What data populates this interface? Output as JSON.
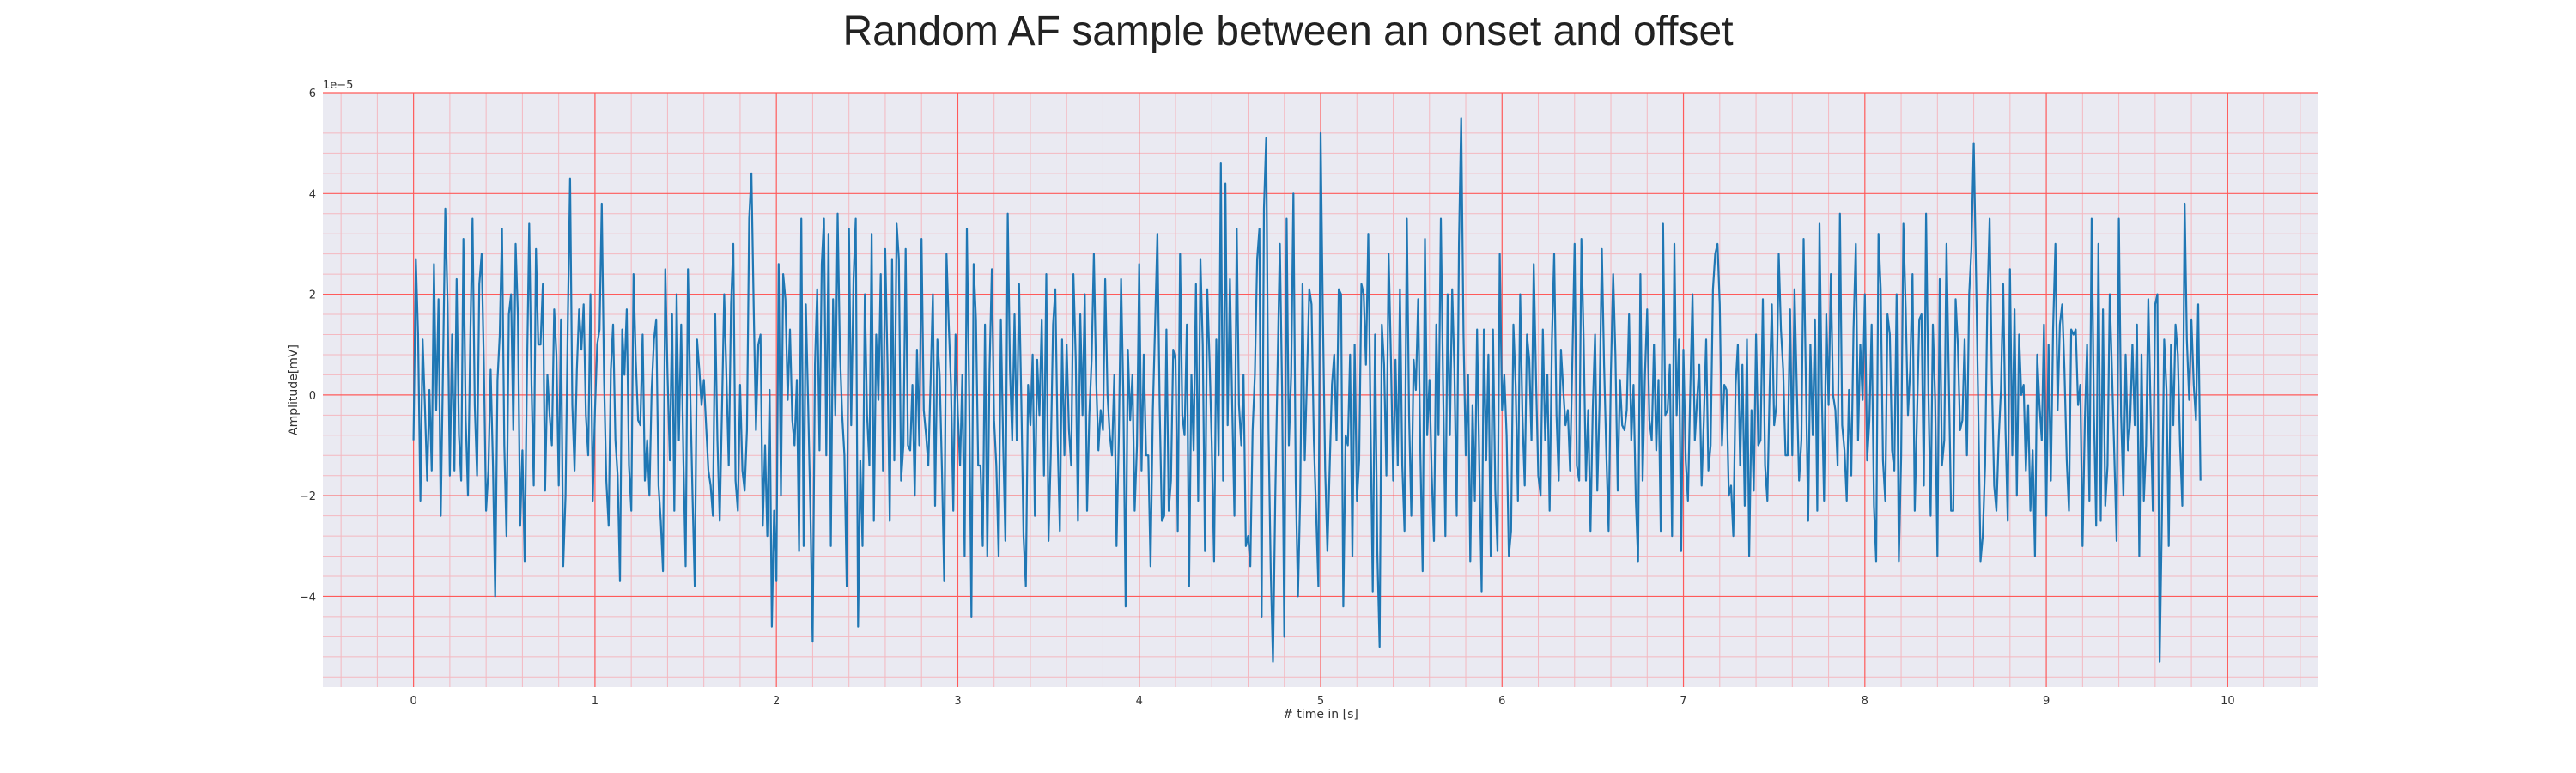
{
  "chart_data": {
    "type": "line",
    "title": "Random AF sample between an onset and offset",
    "xlabel": "# time in [s]",
    "ylabel": "Amplitude[mV]",
    "y_offset_label": "1e−5",
    "xlim": [
      -0.5,
      10.5
    ],
    "ylim": [
      -5.8,
      6
    ],
    "x_ticks": [
      0,
      1,
      2,
      3,
      4,
      5,
      6,
      7,
      8,
      9,
      10
    ],
    "y_ticks": [
      -4,
      -2,
      0,
      2,
      4,
      6
    ],
    "grid": true,
    "minor_grid": true,
    "colors": {
      "background": "#eaeaf2",
      "major_grid": "#ff5a5a",
      "minor_grid": "#f4b8c0",
      "line": "#1f77b4"
    },
    "series": [
      {
        "x_start": 0,
        "x_step": 0.0125,
        "values": [
          -0.9,
          2.7,
          1.2,
          -2.1,
          1.1,
          -0.2,
          -1.7,
          0.1,
          -1.5,
          2.6,
          -0.3,
          1.9,
          -2.4,
          0.6,
          3.7,
          1.8,
          -1.6,
          1.2,
          -1.5,
          2.3,
          -0.8,
          -1.7,
          3.1,
          -0.5,
          -2.0,
          1.1,
          3.5,
          -0.2,
          -1.6,
          2.2,
          2.8,
          0.6,
          -2.3,
          -1.5,
          0.5,
          -1.4,
          -4.0,
          0.3,
          1.2,
          3.3,
          -1.0,
          -2.8,
          1.6,
          2.0,
          -0.7,
          3.0,
          1.6,
          -2.6,
          -1.1,
          -3.3,
          0.4,
          3.4,
          0.2,
          -1.8,
          2.9,
          1.0,
          1.0,
          2.2,
          -1.9,
          0.4,
          -0.4,
          -1.0,
          1.7,
          0.8,
          -1.8,
          1.5,
          -3.4,
          -2.0,
          1.4,
          4.3,
          -0.2,
          -1.5,
          0.5,
          1.7,
          0.9,
          1.8,
          -0.4,
          -1.2,
          2.0,
          -2.1,
          -0.3,
          1.0,
          1.3,
          3.8,
          0.3,
          -1.7,
          -2.6,
          0.5,
          1.4,
          -0.9,
          -1.6,
          -3.7,
          1.3,
          0.4,
          1.7,
          -1.4,
          -2.3,
          2.4,
          0.7,
          -0.5,
          -0.6,
          1.2,
          -1.7,
          -0.9,
          -2.0,
          0.1,
          1.1,
          1.5,
          -1.8,
          -2.5,
          -3.5,
          2.5,
          0.4,
          -1.3,
          1.6,
          -2.3,
          2.0,
          -0.9,
          1.4,
          -1.3,
          -3.4,
          2.5,
          0.1,
          -2.0,
          -3.8,
          1.1,
          0.5,
          -0.2,
          0.3,
          -0.6,
          -1.5,
          -1.8,
          -2.4,
          1.6,
          -0.9,
          -2.5,
          -0.3,
          2.0,
          0.3,
          -1.4,
          1.8,
          3.0,
          -1.7,
          -2.3,
          0.2,
          -1.5,
          -1.9,
          -0.7,
          3.5,
          4.4,
          1.7,
          -0.7,
          1.0,
          1.2,
          -2.6,
          -1.0,
          -2.8,
          0.1,
          -4.6,
          -2.3,
          -3.7,
          2.6,
          -2.0,
          2.4,
          1.9,
          -0.1,
          1.3,
          -0.5,
          -1.0,
          0.3,
          -3.1,
          3.5,
          -3.0,
          1.8,
          -0.2,
          -2.3,
          -4.9,
          0.6,
          2.1,
          -1.1,
          2.6,
          3.5,
          -1.2,
          3.2,
          -3.0,
          1.9,
          -0.4,
          3.6,
          0.9,
          -0.4,
          -1.2,
          -3.8,
          3.3,
          -0.6,
          2.3,
          3.5,
          -4.6,
          -1.3,
          -3.0,
          2.0,
          -0.4,
          -1.4,
          3.2,
          -2.5,
          1.2,
          -0.1,
          2.4,
          -1.5,
          2.9,
          0.6,
          -2.5,
          2.7,
          -1.3,
          3.4,
          2.7,
          -1.7,
          -1.0,
          2.9,
          -1.0,
          -1.1,
          0.2,
          -2.0,
          0.9,
          -1.0,
          3.1,
          -0.3,
          -0.8,
          -1.4,
          0.3,
          2.0,
          -2.2,
          1.1,
          0.4,
          -1.5,
          -3.7,
          2.8,
          1.4,
          0.2,
          -2.3,
          1.2,
          -0.4,
          -1.4,
          0.4,
          -3.2,
          3.3,
          0.0,
          -4.4,
          2.6,
          1.5,
          -1.4,
          -1.4,
          -3.0,
          1.4,
          -3.2,
          0.5,
          2.5,
          -0.5,
          -1.4,
          -3.2,
          1.5,
          -1.0,
          -2.9,
          3.6,
          0.5,
          -0.9,
          1.6,
          -0.9,
          2.2,
          -0.1,
          -2.8,
          -3.8,
          0.2,
          -0.6,
          0.8,
          -2.4,
          0.7,
          -0.4,
          1.5,
          -1.6,
          2.4,
          -2.9,
          -1.2,
          1.4,
          2.1,
          -0.9,
          -2.7,
          1.1,
          -1.2,
          1.0,
          -0.7,
          -1.4,
          2.4,
          0.7,
          -2.5,
          1.6,
          -0.4,
          2.0,
          -2.3,
          -0.4,
          0.7,
          2.8,
          0.3,
          -1.1,
          -0.3,
          -0.7,
          2.3,
          0.0,
          -0.8,
          -1.2,
          0.4,
          -3.0,
          -0.8,
          2.3,
          0.0,
          -4.2,
          0.9,
          -0.5,
          0.4,
          -2.3,
          -1.0,
          2.6,
          -1.5,
          0.8,
          -1.2,
          -1.2,
          -3.4,
          -0.3,
          1.4,
          3.2,
          -0.2,
          -2.5,
          -2.4,
          1.3,
          -2.3,
          -1.7,
          0.9,
          0.7,
          -2.7,
          2.8,
          -0.4,
          -0.8,
          1.4,
          -3.8,
          0.4,
          -1.1,
          2.2,
          -2.1,
          2.7,
          1.0,
          -3.1,
          2.1,
          0.7,
          -1.0,
          -3.3,
          1.1,
          -1.2,
          4.6,
          -1.7,
          4.2,
          -0.6,
          2.3,
          -0.2,
          -2.4,
          3.3,
          -0.2,
          -1.0,
          0.4,
          -3.0,
          -2.8,
          -3.4,
          -0.7,
          0.4,
          2.7,
          3.3,
          -4.4,
          3.7,
          5.1,
          -0.7,
          -3.5,
          -5.3,
          -2.0,
          0.5,
          3.0,
          0.1,
          -4.8,
          3.5,
          -1.0,
          0.4,
          4.0,
          -1.7,
          -4.0,
          -2.0,
          2.2,
          -1.3,
          0.4,
          2.1,
          1.8,
          -0.9,
          -2.3,
          -3.8,
          5.2,
          1.6,
          -1.5,
          -3.1,
          -1.4,
          0.2,
          0.8,
          -0.9,
          2.1,
          2.0,
          -4.2,
          -0.8,
          -1.0,
          0.8,
          -3.2,
          1.0,
          -2.1,
          -1.3,
          2.2,
          2.0,
          0.6,
          3.2,
          -0.5,
          -3.9,
          1.2,
          -3.1,
          -5.0,
          1.4,
          0.6,
          -1.6,
          2.8,
          0.7,
          -1.7,
          0.7,
          -1.4,
          2.1,
          -1.4,
          -2.7,
          3.5,
          -0.4,
          -2.4,
          0.7,
          0.1,
          1.9,
          -1.2,
          -3.5,
          3.1,
          -0.8,
          0.3,
          -1.6,
          -2.9,
          1.4,
          -0.8,
          3.5,
          0.2,
          -2.8,
          2.0,
          -0.8,
          2.1,
          0.5,
          -2.4,
          3.0,
          5.5,
          1.2,
          -1.2,
          0.4,
          -3.3,
          -0.2,
          -2.1,
          1.3,
          -1.5,
          -3.9,
          1.3,
          -1.3,
          0.8,
          -3.2,
          1.3,
          -1.9,
          -3.1,
          2.8,
          -0.3,
          0.4,
          -0.8,
          -3.2,
          -2.7,
          1.4,
          0.2,
          -2.1,
          2.0,
          -0.4,
          -1.8,
          1.2,
          0.7,
          -0.9,
          2.6,
          0.3,
          -1.6,
          -2.0,
          1.3,
          -0.9,
          0.4,
          -2.3,
          1.1,
          2.8,
          -0.4,
          -1.7,
          0.9,
          0.1,
          -0.6,
          -0.3,
          -1.5,
          0.6,
          3.0,
          -1.4,
          -1.7,
          3.1,
          1.1,
          -1.7,
          -0.3,
          -2.7,
          -0.3,
          1.2,
          -1.9,
          -0.2,
          2.9,
          0.6,
          -1.2,
          -2.7,
          0.4,
          2.4,
          0.8,
          -1.9,
          0.3,
          -0.6,
          -0.7,
          -0.3,
          1.6,
          -0.9,
          0.2,
          -2.1,
          -3.3,
          2.4,
          -1.7,
          0.4,
          1.7,
          -0.5,
          -0.9,
          1.0,
          -1.1,
          0.3,
          -2.7,
          3.4,
          -0.4,
          -0.3,
          0.6,
          -2.8,
          3.0,
          -0.4,
          1.1,
          -3.1,
          0.9,
          -1.3,
          -2.1,
          0.1,
          2.0,
          -0.9,
          -0.1,
          0.6,
          -1.8,
          -0.5,
          1.1,
          -1.5,
          -1.0,
          2.1,
          2.8,
          3.0,
          1.8,
          -1.0,
          0.2,
          0.1,
          -2.0,
          -1.8,
          -2.8,
          0.2,
          1.0,
          -1.4,
          0.6,
          -2.2,
          1.1,
          -3.2,
          -0.3,
          -1.9,
          1.2,
          -1.0,
          -0.9,
          1.9,
          -1.4,
          -2.1,
          0.1,
          1.8,
          -0.6,
          -0.2,
          2.8,
          1.3,
          0.5,
          -1.2,
          -1.2,
          1.7,
          -1.2,
          2.1,
          0.1,
          -1.7,
          -0.9,
          3.1,
          0.2,
          -2.5,
          1.0,
          -0.8,
          1.5,
          -2.3,
          3.4,
          0.1,
          -2.1,
          1.6,
          -0.2,
          2.4,
          0.0,
          -0.3,
          -1.4,
          3.6,
          -0.6,
          -1.1,
          -2.1,
          0.1,
          -1.6,
          1.3,
          3.0,
          -0.9,
          1.0,
          -0.1,
          2.0,
          -1.3,
          -0.5,
          1.4,
          -2.2,
          -3.3,
          3.2,
          2.1,
          -1.3,
          -2.1,
          1.6,
          1.2,
          -1.1,
          -1.5,
          2.0,
          -3.3,
          -1.2,
          3.4,
          1.7,
          -0.4,
          0.5,
          2.4,
          -2.3,
          -0.4,
          1.5,
          1.6,
          -1.8,
          3.6,
          0.1,
          -2.4,
          1.4,
          -0.1,
          -3.2,
          2.3,
          -1.4,
          -0.9,
          3.0,
          0.4,
          -2.3,
          -2.3,
          1.9,
          1.0,
          -0.7,
          -0.5,
          1.1,
          -1.2,
          2.0,
          2.9,
          5.0,
          2.5,
          -0.3,
          -3.3,
          -2.8,
          -1.4,
          1.8,
          3.5,
          0.3,
          -1.8,
          -2.3,
          -0.9,
          0.1,
          2.2,
          -0.7,
          -2.5,
          2.5,
          -1.2,
          1.7,
          -2.0,
          1.2,
          0.0,
          0.2,
          -1.5,
          -0.2,
          -2.3,
          -1.1,
          -3.2,
          0.8,
          -0.2,
          -0.9,
          1.4,
          -2.4,
          1.0,
          -1.7,
          1.3,
          3.0,
          -0.3,
          1.4,
          1.8,
          0.5,
          -1.3,
          -2.3,
          1.3,
          1.2,
          1.3,
          -0.2,
          0.2,
          -3.0,
          -0.5,
          1.0,
          -2.1,
          3.5,
          -0.4,
          -2.6,
          3.0,
          -2.5,
          1.7,
          -2.2,
          -1.4,
          2.0,
          0.4,
          -1.2,
          -2.9,
          3.5,
          -0.4,
          -2.0,
          0.8,
          -1.1,
          -0.5,
          1.0,
          -0.6,
          1.4,
          -3.2,
          0.8,
          -2.1,
          -1.0,
          1.9,
          -0.3,
          -2.3,
          1.8,
          2.0,
          -5.3,
          -2.4,
          1.1,
          0.1,
          -3.0,
          1.0,
          -0.6,
          1.4,
          0.8,
          -1.0,
          -2.2,
          3.8,
          1.1,
          -0.1,
          1.5,
          0.2,
          -0.5,
          1.8,
          -1.7
        ]
      }
    ]
  }
}
